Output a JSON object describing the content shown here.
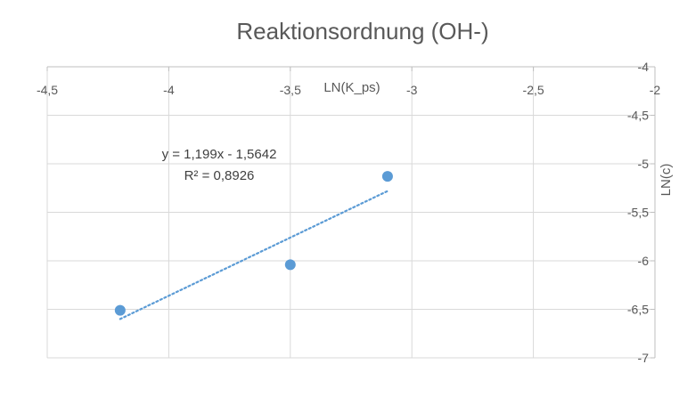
{
  "chart_data": {
    "type": "scatter",
    "title": "Reaktionsordnung (OH-)",
    "xlabel": "LN(K_ps)",
    "ylabel": "LN(c)",
    "xlim": [
      -4.5,
      -2
    ],
    "ylim": [
      -7,
      -4
    ],
    "x_ticks": [
      -4.5,
      -4,
      -3.5,
      -3,
      -2.5,
      -2
    ],
    "y_ticks": [
      -4,
      -4.5,
      -5,
      -5.5,
      -6,
      -6.5,
      -7
    ],
    "x_tick_labels": [
      "-4,5",
      "-4",
      "-3,5",
      "-3",
      "-2,5",
      "-2"
    ],
    "y_tick_labels": [
      "-4",
      "-4,5",
      "-5",
      "-5,5",
      "-6",
      "-6,5",
      "-7"
    ],
    "grid": true,
    "x_axis_position": "top",
    "y_axis_position": "right",
    "series": [
      {
        "x": [
          -4.2,
          -3.5,
          -3.1
        ],
        "y": [
          -6.51,
          -6.04,
          -5.13
        ],
        "color": "#5B9BD5"
      }
    ],
    "trendline": {
      "type": "linear",
      "style": "dotted",
      "color": "#5B9BD5",
      "x_range": [
        -4.2,
        -3.1
      ],
      "slope": 1.199,
      "intercept": -1.5642,
      "equation": "y = 1,199x - 1,5642",
      "r_squared": "R² = 0,8926"
    }
  }
}
